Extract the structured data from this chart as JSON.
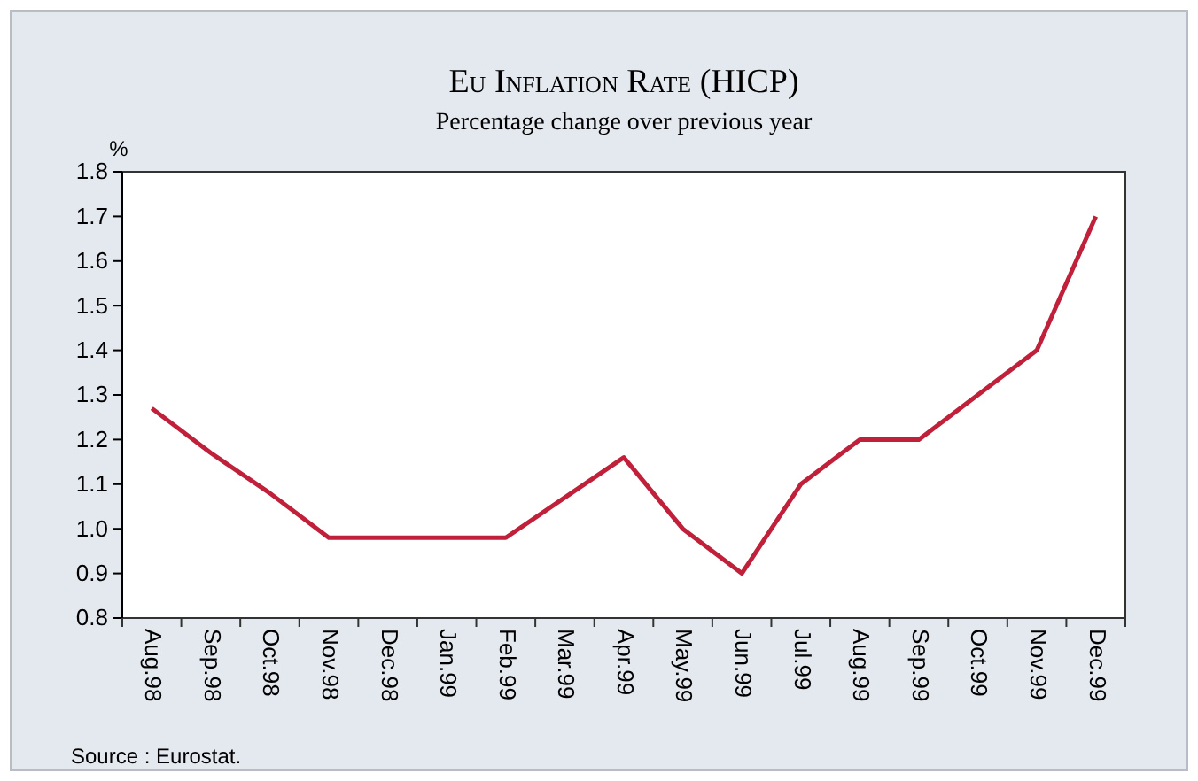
{
  "chart_data": {
    "type": "line",
    "title": "Eu Inflation Rate (HICP)",
    "subtitle": "Percentage change over previous year",
    "ylabel": "%",
    "categories": [
      "Aug.98",
      "Sep.98",
      "Oct.98",
      "Nov.98",
      "Dec.98",
      "Jan.99",
      "Feb.99",
      "Mar.99",
      "Apr.99",
      "May.99",
      "Jun.99",
      "Jul.99",
      "Aug.99",
      "Sep.99",
      "Oct.99",
      "Nov.99",
      "Dec.99"
    ],
    "series": [
      {
        "color": "#c0203a",
        "values": [
          1.27,
          1.17,
          1.08,
          0.98,
          0.98,
          0.98,
          0.98,
          1.07,
          1.16,
          1.0,
          0.9,
          1.1,
          1.2,
          1.2,
          1.3,
          1.4,
          1.7
        ]
      }
    ],
    "ylim": [
      0.8,
      1.8
    ],
    "yticks": [
      0.8,
      0.9,
      {
        "value": 1,
        "label": "1.0"
      },
      1.1,
      1.2,
      1.3,
      1.4,
      1.5,
      1.6,
      1.7,
      1.8
    ],
    "grid": false,
    "marker": "none",
    "line_style": "solid",
    "annotations": [
      "Source : Eurostat."
    ]
  }
}
